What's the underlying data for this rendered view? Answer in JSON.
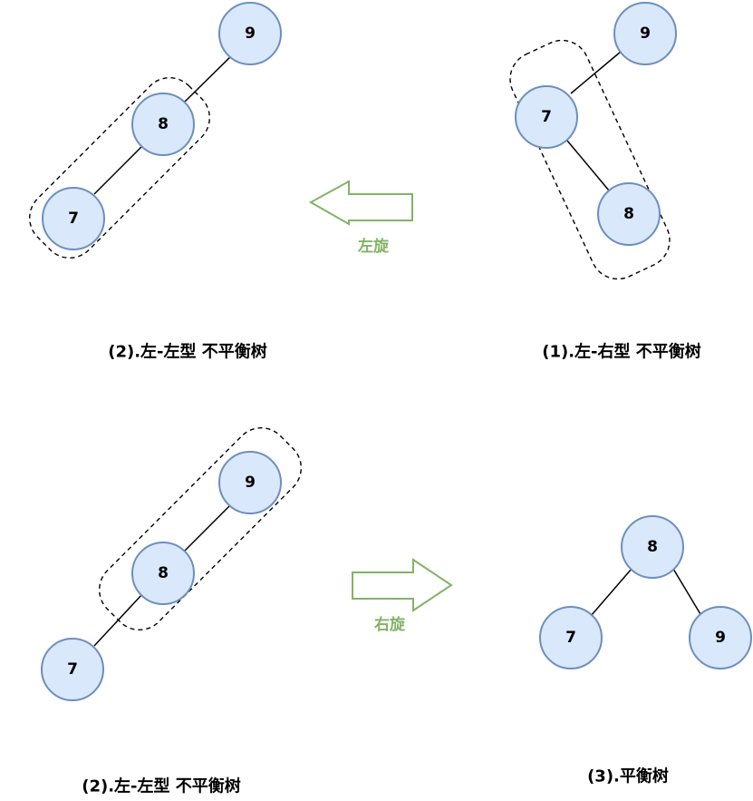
{
  "captions": {
    "top_right": "(1).左-右型 不平衡树",
    "top_left": "(2).左-左型 不平衡树",
    "bottom_left": "(2).左-左型 不平衡树",
    "bottom_right": "(3).平衡树"
  },
  "arrows": {
    "left_rotate": "左旋",
    "right_rotate": "右旋"
  },
  "trees": {
    "top_right": {
      "root": "9",
      "middle": "7",
      "leaf": "8"
    },
    "top_left": {
      "root": "9",
      "middle": "8",
      "leaf": "7"
    },
    "bottom_left": {
      "root": "9",
      "middle": "8",
      "leaf": "7"
    },
    "bottom_right": {
      "root": "8",
      "left": "7",
      "right": "9"
    }
  },
  "colors": {
    "node_fill": "#dae8fc",
    "node_stroke": "#6c8ebf",
    "arrow": "#82b366"
  }
}
